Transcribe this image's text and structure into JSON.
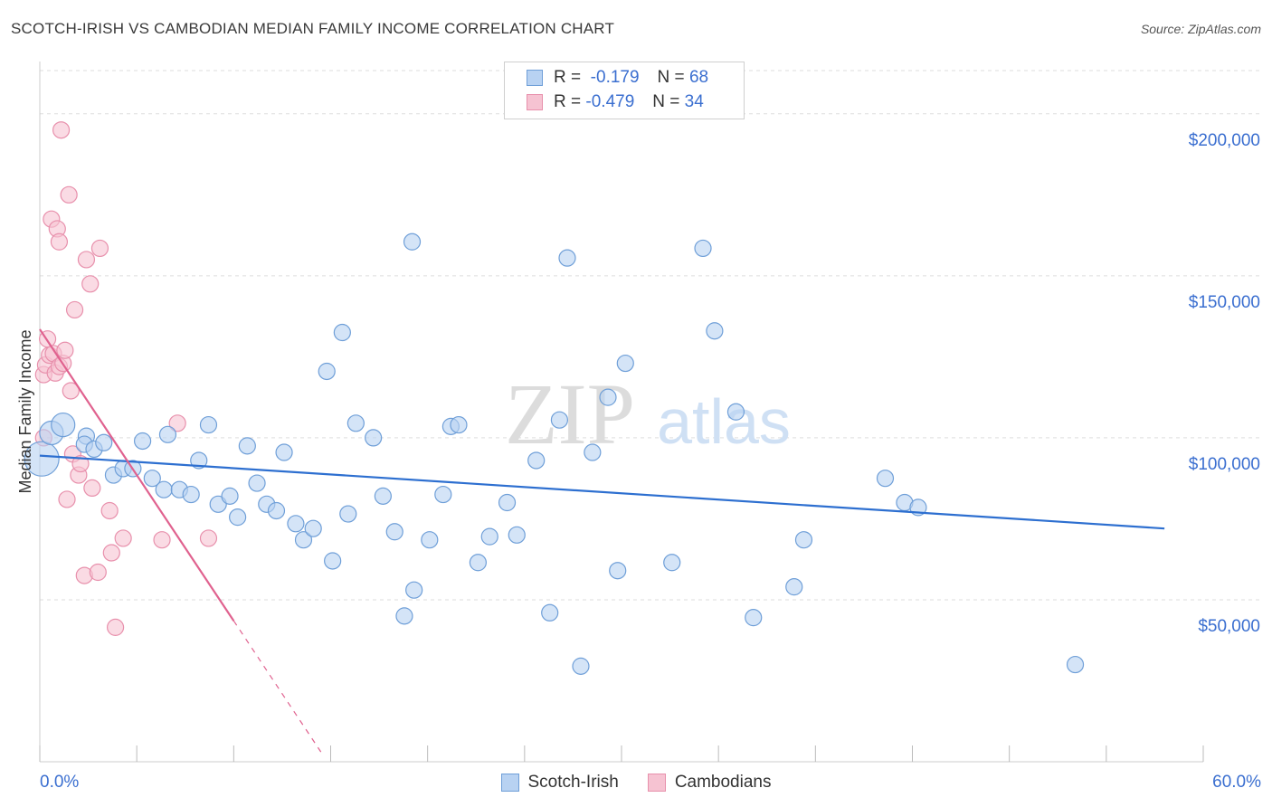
{
  "title": "SCOTCH-IRISH VS CAMBODIAN MEDIAN FAMILY INCOME CORRELATION CHART",
  "source": "Source: ZipAtlas.com",
  "watermark": {
    "zip": "ZIP",
    "atlas": "atlas"
  },
  "legend": {
    "rows": [
      {
        "r_label": "R =",
        "r_value": "-0.179",
        "n_label": "N =",
        "n_value": "68"
      },
      {
        "r_label": "R =",
        "r_value": "-0.479",
        "n_label": "N =",
        "n_value": "34"
      }
    ]
  },
  "colors": {
    "blue_fill": "#b8d2f2",
    "blue_stroke": "#6f9fd8",
    "blue_line": "#2d6fd0",
    "pink_fill": "#f6c3d2",
    "pink_stroke": "#e890ac",
    "pink_line": "#e0628f",
    "axis_label": "#3b6fd0",
    "grid": "#dddddd"
  },
  "chart_data": {
    "type": "scatter",
    "title": "SCOTCH-IRISH VS CAMBODIAN MEDIAN FAMILY INCOME CORRELATION CHART",
    "xlabel": "",
    "ylabel": "Median Family Income",
    "xlim": [
      0,
      60
    ],
    "ylim": [
      0,
      210000
    ],
    "x_tick_labels": [
      "0.0%",
      "60.0%"
    ],
    "y_ticks": [
      50000,
      100000,
      150000,
      200000
    ],
    "y_tick_labels": [
      "$50,000",
      "$100,000",
      "$150,000",
      "$200,000"
    ],
    "grid": true,
    "series": [
      {
        "name": "Scotch-Irish",
        "R": -0.179,
        "N": 68,
        "trend": {
          "x0": 0,
          "y0": 94500,
          "x1": 58,
          "y1": 72000
        },
        "points": [
          [
            0.1,
            93500,
            3
          ],
          [
            0.6,
            101500,
            2
          ],
          [
            1.2,
            104000,
            2
          ],
          [
            2.4,
            100500,
            1
          ],
          [
            2.3,
            98000,
            1
          ],
          [
            2.8,
            96500,
            1
          ],
          [
            3.3,
            98500,
            1
          ],
          [
            3.8,
            88500,
            1
          ],
          [
            4.3,
            90500,
            1
          ],
          [
            4.8,
            90500,
            1
          ],
          [
            5.3,
            99000,
            1
          ],
          [
            5.8,
            87500,
            1
          ],
          [
            6.4,
            84000,
            1
          ],
          [
            6.6,
            101000,
            1
          ],
          [
            7.2,
            84000,
            1
          ],
          [
            7.8,
            82500,
            1
          ],
          [
            8.2,
            93000,
            1
          ],
          [
            8.7,
            104000,
            1
          ],
          [
            9.2,
            79500,
            1
          ],
          [
            9.8,
            82000,
            1
          ],
          [
            10.2,
            75500,
            1
          ],
          [
            10.7,
            97500,
            1
          ],
          [
            11.2,
            86000,
            1
          ],
          [
            11.7,
            79500,
            1
          ],
          [
            12.2,
            77500,
            1
          ],
          [
            12.6,
            95500,
            1
          ],
          [
            13.2,
            73500,
            1
          ],
          [
            13.6,
            68500,
            1
          ],
          [
            14.1,
            72000,
            1
          ],
          [
            14.8,
            120500,
            1
          ],
          [
            15.1,
            62000,
            1
          ],
          [
            15.6,
            132500,
            1
          ],
          [
            15.9,
            76500,
            1
          ],
          [
            16.3,
            104500,
            1
          ],
          [
            17.2,
            100000,
            1
          ],
          [
            17.7,
            82000,
            1
          ],
          [
            18.3,
            71000,
            1
          ],
          [
            18.8,
            45000,
            1
          ],
          [
            19.2,
            160500,
            1
          ],
          [
            19.3,
            53000,
            1
          ],
          [
            20.1,
            68500,
            1
          ],
          [
            20.8,
            82500,
            1
          ],
          [
            21.2,
            103500,
            1
          ],
          [
            21.6,
            104000,
            1
          ],
          [
            22.6,
            61500,
            1
          ],
          [
            23.2,
            69500,
            1
          ],
          [
            24.1,
            80000,
            1
          ],
          [
            24.6,
            70000,
            1
          ],
          [
            25.6,
            93000,
            1
          ],
          [
            26.3,
            46000,
            1
          ],
          [
            26.8,
            105500,
            1
          ],
          [
            27.2,
            155500,
            1
          ],
          [
            27.9,
            29500,
            1
          ],
          [
            28.5,
            95500,
            1
          ],
          [
            29.3,
            112500,
            1
          ],
          [
            29.8,
            59000,
            1
          ],
          [
            30.2,
            123000,
            1
          ],
          [
            32.6,
            61500,
            1
          ],
          [
            34.2,
            158500,
            1
          ],
          [
            34.8,
            133000,
            1
          ],
          [
            35.9,
            108000,
            1
          ],
          [
            36.8,
            44500,
            1
          ],
          [
            38.9,
            54000,
            1
          ],
          [
            39.4,
            68500,
            1
          ],
          [
            43.6,
            87500,
            1
          ],
          [
            44.6,
            80000,
            1
          ],
          [
            45.3,
            78500,
            1
          ],
          [
            53.4,
            30000,
            1
          ]
        ]
      },
      {
        "name": "Cambodians",
        "R": -0.479,
        "N": 34,
        "trend": {
          "x0": 0,
          "y0": 133500,
          "x1": 10,
          "y1": 43500,
          "dash_to_x": 14.6
        },
        "points": [
          [
            0.2,
            100000,
            1
          ],
          [
            0.2,
            119500,
            1
          ],
          [
            0.3,
            122500,
            1
          ],
          [
            0.4,
            130500,
            1
          ],
          [
            0.5,
            125500,
            1
          ],
          [
            0.6,
            167500,
            1
          ],
          [
            0.7,
            126000,
            1
          ],
          [
            0.8,
            120000,
            1
          ],
          [
            0.9,
            164500,
            1
          ],
          [
            1.0,
            122000,
            1
          ],
          [
            1.0,
            160500,
            1
          ],
          [
            1.1,
            195000,
            1
          ],
          [
            1.2,
            123000,
            1
          ],
          [
            1.3,
            127000,
            1
          ],
          [
            1.4,
            81000,
            1
          ],
          [
            1.5,
            175000,
            1
          ],
          [
            1.6,
            114500,
            1
          ],
          [
            1.7,
            95000,
            1
          ],
          [
            1.8,
            139500,
            1
          ],
          [
            2.0,
            88500,
            1
          ],
          [
            2.1,
            92000,
            1
          ],
          [
            2.3,
            57500,
            1
          ],
          [
            2.4,
            155000,
            1
          ],
          [
            2.6,
            147500,
            1
          ],
          [
            2.7,
            84500,
            1
          ],
          [
            3.0,
            58500,
            1
          ],
          [
            3.1,
            158500,
            1
          ],
          [
            3.6,
            77500,
            1
          ],
          [
            3.7,
            64500,
            1
          ],
          [
            3.9,
            41500,
            1
          ],
          [
            4.3,
            69000,
            1
          ],
          [
            6.3,
            68500,
            1
          ],
          [
            7.1,
            104500,
            1
          ],
          [
            8.7,
            69000,
            1
          ]
        ]
      }
    ]
  }
}
